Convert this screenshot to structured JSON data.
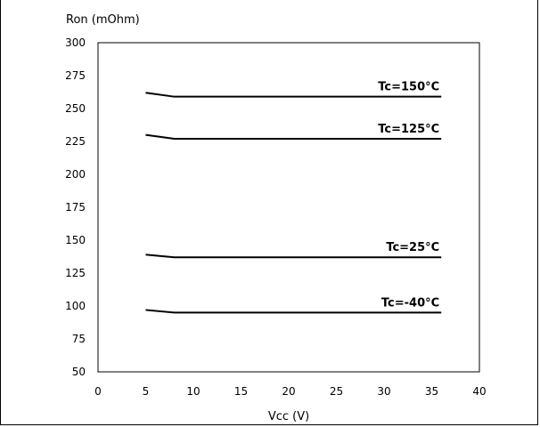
{
  "chart_data": {
    "type": "line",
    "xlabel": "Vcc (V)",
    "ylabel": "Ron (mOhm)",
    "xlim": [
      0,
      40
    ],
    "ylim": [
      50,
      300
    ],
    "xticks": [
      0,
      5,
      10,
      15,
      20,
      25,
      30,
      35,
      40
    ],
    "yticks": [
      50,
      75,
      100,
      125,
      150,
      175,
      200,
      225,
      250,
      275,
      300
    ],
    "grid": true,
    "legend": "inline-labels-right",
    "series": [
      {
        "name": "Tc=150°C",
        "x": [
          5,
          8,
          36
        ],
        "y": [
          262,
          259,
          259
        ]
      },
      {
        "name": "Tc=125°C",
        "x": [
          5,
          8,
          36
        ],
        "y": [
          230,
          227,
          227
        ]
      },
      {
        "name": "Tc=25°C",
        "x": [
          5,
          8,
          36
        ],
        "y": [
          139,
          137,
          137
        ]
      },
      {
        "name": "Tc=-40°C",
        "x": [
          5,
          8,
          36
        ],
        "y": [
          97,
          95,
          95
        ]
      }
    ],
    "line_color": "#000000",
    "grid_color": "#c8c8c8"
  }
}
